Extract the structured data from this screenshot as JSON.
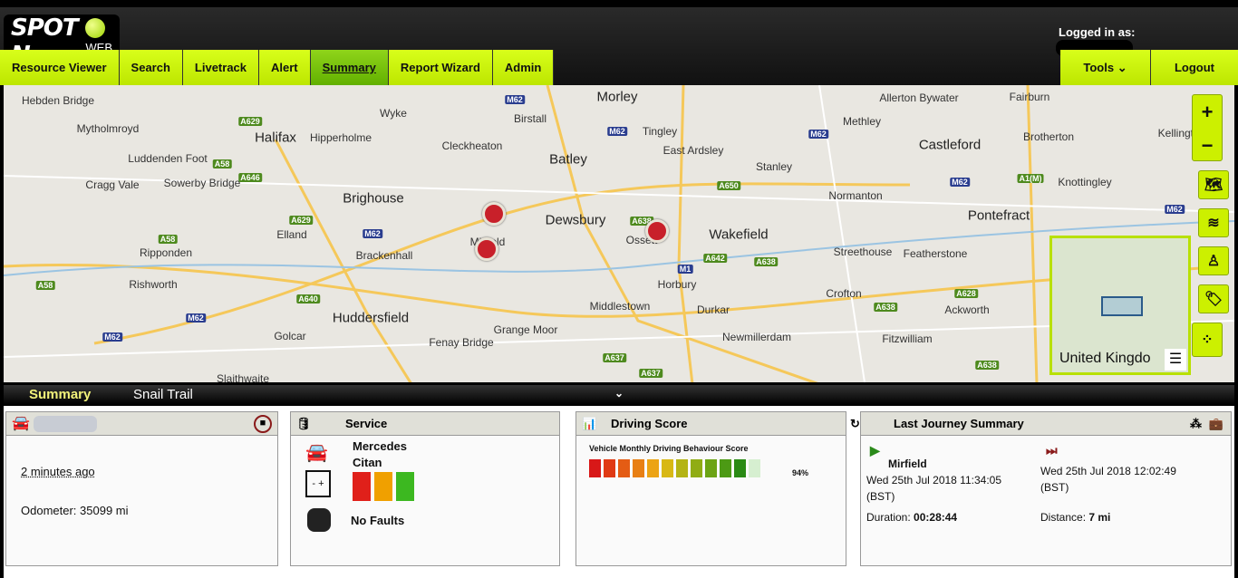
{
  "header": {
    "logo_text": "SPOT ON",
    "logo_sub": "WEB",
    "logged_in_label": "Logged in as:"
  },
  "nav": {
    "items": [
      "Resource Viewer",
      "Search",
      "Livetrack",
      "Alert",
      "Summary",
      "Report Wizard",
      "Admin"
    ],
    "active": "Summary",
    "tools": "Tools",
    "logout": "Logout"
  },
  "map": {
    "places": [
      "Hebden Bridge",
      "Mytholmroyd",
      "Halifax",
      "Wyke",
      "Hipperholme",
      "Cleckheaton",
      "Birstall",
      "Morley",
      "Tingley",
      "East Ardsley",
      "Batley",
      "Allerton Bywater",
      "Methley",
      "Fairburn",
      "Castleford",
      "Brotherton",
      "Kellington",
      "Luddenden Foot",
      "Sowerby Bridge",
      "Cragg Vale",
      "Brighouse",
      "Dewsbury",
      "Stanley",
      "Normanton",
      "Knottingley",
      "Pontefract",
      "Elland",
      "Ripponden",
      "Brackenhall",
      "Mirfield",
      "Ossett",
      "Wakefield",
      "Streethouse",
      "Featherstone",
      "Rishworth",
      "Horbury",
      "Crofton",
      "Huddersfield",
      "Middlestown",
      "Durkar",
      "Ackworth",
      "Golcar",
      "Grange Moor",
      "Fenay Bridge",
      "Newmillerdam",
      "Fitzwilliam",
      "Slaithwaite"
    ],
    "roads": [
      "A629",
      "A58",
      "A646",
      "A629",
      "M62",
      "A58",
      "A58",
      "A640",
      "M62",
      "M62",
      "M62",
      "M62",
      "A650",
      "M62",
      "A1(M)",
      "M62",
      "A638",
      "A642",
      "M1",
      "A638",
      "A628",
      "A638",
      "A637",
      "A637",
      "A638",
      "M62"
    ],
    "zoom_in": "+",
    "zoom_out": "−",
    "controls": [
      "world-map",
      "layers",
      "street-view",
      "tag",
      "trail"
    ],
    "overview_label": "United Kingdo"
  },
  "tabs": {
    "summary": "Summary",
    "snail_trail": "Snail Trail"
  },
  "vehicle": {
    "last_seen": "2 minutes ago",
    "odometer": "Odometer: 35099 mi"
  },
  "service": {
    "title": "Service",
    "make": "Mercedes",
    "model": "Citan",
    "faults": "No Faults",
    "battery_levels": [
      "#e0201a",
      "#f0a000",
      "#3cb820"
    ]
  },
  "driving": {
    "title": "Driving Score",
    "subtitle": "Vehicle Monthly Driving Behaviour Score",
    "score": "94%",
    "score_value": 94,
    "segment_colors": [
      "#d81818",
      "#e03a14",
      "#e45c14",
      "#e88014",
      "#eca414",
      "#d8b814",
      "#b4b414",
      "#90ac14",
      "#6ca414",
      "#4c9a14",
      "#2a8a14"
    ]
  },
  "journey": {
    "title": "Last Journey Summary",
    "start_place": "Mirfield",
    "start_time": "Wed 25th Jul 2018 11:34:05",
    "start_tz": "(BST)",
    "end_time": "Wed 25th Jul 2018 12:02:49",
    "end_tz": "(BST)",
    "duration_label": "Duration:",
    "duration": "00:28:44",
    "distance_label": "Distance:",
    "distance": "7 mi"
  },
  "colors": {
    "accent": "#ccf000",
    "active_tab": "#6cb800"
  }
}
